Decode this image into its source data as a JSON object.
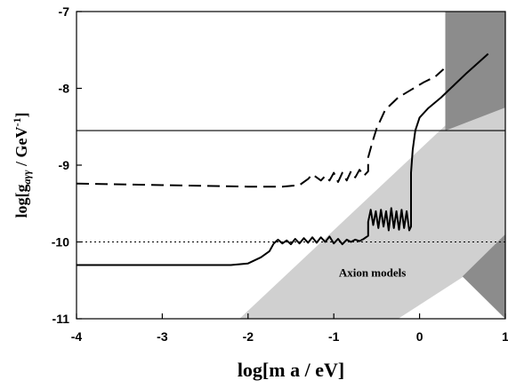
{
  "chart_data": {
    "type": "line",
    "xlabel": "log[m a  / eV]",
    "ylabel": "log[g",
    "ylabel_sub": "aγγ",
    "ylabel_tail": " / GeV",
    "ylabel_sup": "-1",
    "ylabel_end": "]",
    "xlim": [
      -4,
      1
    ],
    "ylim": [
      -11,
      -7
    ],
    "xticks": [
      -4,
      -3,
      -2,
      -1,
      0,
      1
    ],
    "xtick_labels": [
      "-4",
      "-3",
      "-2",
      "-1",
      "0",
      "1"
    ],
    "yticks": [
      -11,
      -10,
      -9,
      -8,
      -7
    ],
    "ytick_labels": [
      "-11",
      "-10",
      "-9",
      "-8",
      "-7"
    ],
    "grid": false,
    "annotations": [
      {
        "text": "Axion models",
        "x": -0.55,
        "y": -10.45
      }
    ],
    "reference_lines": [
      {
        "style": "solid",
        "y": -8.55
      },
      {
        "style": "dotted",
        "y": -10.0
      }
    ],
    "regions": [
      {
        "color": "#d0d0d0",
        "polygon": [
          [
            -2.1,
            -11
          ],
          [
            -0.25,
            -11
          ],
          [
            1,
            -10.1
          ],
          [
            1,
            -7.75
          ]
        ]
      },
      {
        "color": "#8c8c8c",
        "polygon": [
          [
            0.3,
            -7
          ],
          [
            1,
            -7
          ],
          [
            1,
            -8.25
          ],
          [
            0.3,
            -8.55
          ]
        ]
      },
      {
        "color": "#8c8c8c",
        "polygon": [
          [
            0.5,
            -10.45
          ],
          [
            1,
            -9.9
          ],
          [
            1,
            -11
          ]
        ]
      }
    ],
    "series": [
      {
        "style": "dashed",
        "points": [
          [
            -4,
            -9.24
          ],
          [
            -3,
            -9.26
          ],
          [
            -2,
            -9.28
          ],
          [
            -1.6,
            -9.28
          ],
          [
            -1.4,
            -9.26
          ],
          [
            -1.3,
            -9.18
          ],
          [
            -1.25,
            -9.12
          ],
          [
            -1.2,
            -9.16
          ],
          [
            -1.15,
            -9.2
          ],
          [
            -1.1,
            -9.14
          ],
          [
            -1.05,
            -9.2
          ],
          [
            -1.0,
            -9.1
          ],
          [
            -0.95,
            -9.22
          ],
          [
            -0.9,
            -9.1
          ],
          [
            -0.85,
            -9.2
          ],
          [
            -0.8,
            -9.08
          ],
          [
            -0.75,
            -9.16
          ],
          [
            -0.7,
            -9.06
          ],
          [
            -0.65,
            -9.14
          ],
          [
            -0.6,
            -9.08
          ],
          [
            -0.6,
            -8.9
          ],
          [
            -0.55,
            -8.7
          ],
          [
            -0.5,
            -8.52
          ],
          [
            -0.4,
            -8.28
          ],
          [
            -0.25,
            -8.12
          ],
          [
            -0.1,
            -8.02
          ],
          [
            0.05,
            -7.92
          ],
          [
            0.18,
            -7.85
          ],
          [
            0.28,
            -7.75
          ]
        ]
      },
      {
        "style": "solid",
        "points": [
          [
            -4,
            -10.3
          ],
          [
            -3,
            -10.3
          ],
          [
            -2.2,
            -10.3
          ],
          [
            -2.0,
            -10.28
          ],
          [
            -1.85,
            -10.2
          ],
          [
            -1.75,
            -10.12
          ],
          [
            -1.7,
            -10.02
          ],
          [
            -1.65,
            -9.97
          ],
          [
            -1.6,
            -10.02
          ],
          [
            -1.55,
            -9.98
          ],
          [
            -1.5,
            -10.03
          ],
          [
            -1.45,
            -9.96
          ],
          [
            -1.4,
            -10.02
          ],
          [
            -1.35,
            -9.95
          ],
          [
            -1.3,
            -10.01
          ],
          [
            -1.25,
            -9.94
          ],
          [
            -1.2,
            -10.01
          ],
          [
            -1.15,
            -9.94
          ],
          [
            -1.1,
            -10.0
          ],
          [
            -1.05,
            -9.93
          ],
          [
            -1.0,
            -10.02
          ],
          [
            -0.95,
            -9.96
          ],
          [
            -0.9,
            -10.03
          ],
          [
            -0.85,
            -9.97
          ],
          [
            -0.8,
            -10.0
          ],
          [
            -0.75,
            -9.97
          ],
          [
            -0.7,
            -9.99
          ],
          [
            -0.65,
            -9.96
          ],
          [
            -0.6,
            -9.92
          ],
          [
            -0.6,
            -9.74
          ],
          [
            -0.57,
            -9.58
          ],
          [
            -0.54,
            -9.78
          ],
          [
            -0.51,
            -9.6
          ],
          [
            -0.48,
            -9.82
          ],
          [
            -0.45,
            -9.58
          ],
          [
            -0.42,
            -9.8
          ],
          [
            -0.39,
            -9.6
          ],
          [
            -0.36,
            -9.85
          ],
          [
            -0.33,
            -9.56
          ],
          [
            -0.3,
            -9.82
          ],
          [
            -0.27,
            -9.6
          ],
          [
            -0.24,
            -9.84
          ],
          [
            -0.21,
            -9.58
          ],
          [
            -0.18,
            -9.82
          ],
          [
            -0.15,
            -9.6
          ],
          [
            -0.12,
            -9.85
          ],
          [
            -0.1,
            -9.8
          ],
          [
            -0.1,
            -9.1
          ],
          [
            -0.08,
            -8.8
          ],
          [
            -0.05,
            -8.55
          ],
          [
            0.0,
            -8.38
          ],
          [
            0.1,
            -8.26
          ],
          [
            0.25,
            -8.12
          ],
          [
            0.4,
            -7.96
          ],
          [
            0.55,
            -7.8
          ],
          [
            0.7,
            -7.65
          ],
          [
            0.8,
            -7.55
          ]
        ]
      }
    ]
  }
}
